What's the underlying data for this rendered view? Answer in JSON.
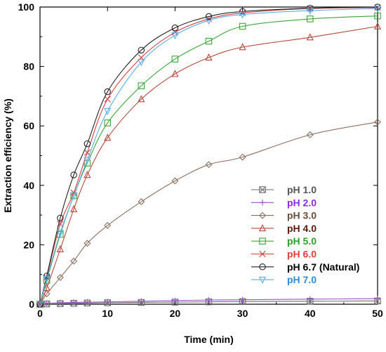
{
  "chart_data": {
    "type": "line",
    "xlabel": "Time (min)",
    "ylabel": "Extraction efficiency (%)",
    "xlim": [
      0,
      50
    ],
    "ylim": [
      0,
      100
    ],
    "xticks": [
      0,
      10,
      20,
      30,
      40,
      50
    ],
    "yticks": [
      0,
      20,
      40,
      60,
      80,
      100
    ],
    "grid": false,
    "legend_position": "lower-right",
    "series": [
      {
        "name": "pH 1.0",
        "color": "#6e6e6e",
        "marker": "square-x",
        "label_color": "#555555",
        "x": [
          0,
          1,
          3,
          5,
          7,
          10,
          15,
          20,
          25,
          30,
          40,
          50
        ],
        "y": [
          0,
          0.1,
          0.2,
          0.3,
          0.4,
          0.5,
          0.6,
          0.7,
          0.8,
          0.9,
          1.0,
          1.1
        ]
      },
      {
        "name": "pH 2.0",
        "color": "#9b4fc8",
        "marker": "plus",
        "label_color": "#8a2be2",
        "x": [
          0,
          1,
          3,
          5,
          7,
          10,
          15,
          20,
          25,
          30,
          40,
          50
        ],
        "y": [
          0,
          0.3,
          0.5,
          0.6,
          0.7,
          0.8,
          1.0,
          1.2,
          1.4,
          1.5,
          1.7,
          1.9
        ]
      },
      {
        "name": "pH 3.0",
        "color": "#8b6e60",
        "marker": "diamond",
        "label_color": "#6b4c3b",
        "x": [
          0,
          1,
          3,
          5,
          7,
          10,
          15,
          20,
          25,
          30,
          40,
          50
        ],
        "y": [
          0,
          3.5,
          9,
          14.5,
          20.5,
          26.5,
          34.5,
          41.5,
          47,
          49.5,
          57,
          61.3
        ]
      },
      {
        "name": "pH 4.0",
        "color": "#b5493f",
        "marker": "triangle",
        "label_color": "#5a1a10",
        "x": [
          0,
          1,
          3,
          5,
          7,
          10,
          15,
          20,
          25,
          30,
          40,
          50
        ],
        "y": [
          0,
          5.5,
          18.5,
          32,
          43.5,
          56,
          69,
          77.5,
          83,
          86.5,
          89.8,
          93.5
        ]
      },
      {
        "name": "pH 5.0",
        "color": "#3aa53a",
        "marker": "square",
        "label_color": "#2f9e2f",
        "x": [
          0,
          1,
          3,
          5,
          7,
          10,
          15,
          20,
          25,
          30,
          40,
          50
        ],
        "y": [
          0,
          8,
          23.5,
          36.5,
          47.5,
          61,
          73.5,
          82.5,
          88.5,
          93.5,
          96,
          97
        ]
      },
      {
        "name": "pH 6.0",
        "color": "#d04040",
        "marker": "x",
        "label_color": "#e0403a",
        "x": [
          0,
          1,
          3,
          5,
          7,
          10,
          15,
          20,
          25,
          30,
          40,
          50
        ],
        "y": [
          0,
          9,
          27,
          37.5,
          51,
          69,
          83,
          91.5,
          96,
          98,
          99.5,
          99.8
        ]
      },
      {
        "name": "pH 6.7 (Natural)",
        "color": "#222222",
        "marker": "circle",
        "label_color": "#000000",
        "x": [
          0,
          1,
          3,
          5,
          7,
          10,
          15,
          20,
          25,
          30,
          40,
          50
        ],
        "y": [
          0,
          9.5,
          29,
          43.5,
          54,
          71.5,
          85.5,
          93,
          96.8,
          98.5,
          99.6,
          100
        ]
      },
      {
        "name": "pH 7.0",
        "color": "#5aaee6",
        "marker": "triangle-down",
        "label_color": "#2e8bd6",
        "x": [
          0,
          1,
          3,
          5,
          7,
          10,
          15,
          20,
          25,
          30,
          40,
          50
        ],
        "y": [
          0,
          8.5,
          24,
          36.5,
          48.5,
          65,
          81.5,
          90.5,
          95.5,
          97.5,
          98.8,
          99.5
        ]
      }
    ]
  }
}
